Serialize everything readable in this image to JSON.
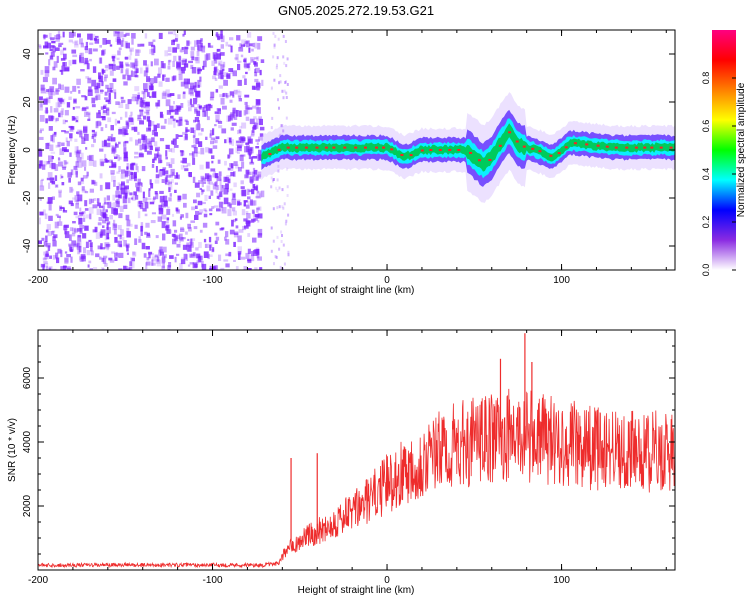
{
  "figure": {
    "title": "GN05.2025.272.19.53.G21"
  },
  "chart_data": [
    {
      "type": "heatmap",
      "id": "spectrogram",
      "title": "GN05.2025.272.19.53.G21",
      "xlabel": "Height of straight line (km)",
      "ylabel": "Frequency (Hz)",
      "xlim": [
        -200,
        165
      ],
      "ylim": [
        -50,
        50
      ],
      "x_ticks": [
        -200,
        -100,
        0,
        100
      ],
      "y_ticks": [
        -40,
        -20,
        0,
        20,
        40
      ],
      "noise_region_x": [
        -200,
        -72
      ],
      "signal_track": [
        {
          "x": -72,
          "y": -3
        },
        {
          "x": -60,
          "y": 1
        },
        {
          "x": -30,
          "y": 1
        },
        {
          "x": 0,
          "y": 1
        },
        {
          "x": 10,
          "y": -3
        },
        {
          "x": 20,
          "y": 0
        },
        {
          "x": 45,
          "y": 0
        },
        {
          "x": 50,
          "y": -3
        },
        {
          "x": 55,
          "y": -6
        },
        {
          "x": 60,
          "y": -3
        },
        {
          "x": 66,
          "y": 4
        },
        {
          "x": 70,
          "y": 8
        },
        {
          "x": 75,
          "y": 2
        },
        {
          "x": 85,
          "y": 0
        },
        {
          "x": 95,
          "y": -3
        },
        {
          "x": 105,
          "y": 3
        },
        {
          "x": 130,
          "y": 1
        },
        {
          "x": 165,
          "y": 1
        }
      ],
      "colorbar": {
        "label": "Normalized spectral amplitude",
        "range": [
          0,
          1
        ],
        "ticks": [
          "0.0",
          "0.2",
          "0.4",
          "0.6",
          "0.8"
        ],
        "colors": [
          "#ffffff",
          "#8a2be2",
          "#0000ff",
          "#00ffff",
          "#00ff00",
          "#ffff00",
          "#ff8000",
          "#ff0000",
          "#ff0080"
        ]
      },
      "signal_color": "#00c853",
      "peak_color": "#ff2020",
      "noise_color": "#7a1fff"
    },
    {
      "type": "line",
      "id": "snr",
      "xlabel": "Height of straight line (km)",
      "ylabel": "SNR (10 * v/v)",
      "xlim": [
        -200,
        165
      ],
      "ylim": [
        0,
        7500
      ],
      "x_ticks": [
        -200,
        -100,
        0,
        100
      ],
      "y_ticks": [
        2000,
        4000,
        6000
      ],
      "color": "#ee2c2c",
      "series": [
        {
          "name": "SNR",
          "x": [
            -200,
            -120,
            -72,
            -62,
            -58,
            -55,
            -52,
            -48,
            -40,
            -30,
            -20,
            -10,
            0,
            10,
            20,
            30,
            40,
            50,
            60,
            70,
            80,
            90,
            100,
            110,
            120,
            130,
            140,
            150,
            160,
            165
          ],
          "y": [
            150,
            160,
            150,
            200,
            600,
            900,
            800,
            1000,
            1200,
            1500,
            1800,
            2200,
            2700,
            3100,
            3400,
            3700,
            3900,
            4000,
            4100,
            4200,
            4200,
            4100,
            4000,
            3900,
            3800,
            3800,
            3700,
            3700,
            3700,
            3700
          ]
        }
      ],
      "spikes": [
        {
          "x": -55,
          "y": 3500
        },
        {
          "x": -40,
          "y": 3650
        },
        {
          "x": 65,
          "y": 6600
        },
        {
          "x": 79,
          "y": 7400
        },
        {
          "x": 83,
          "y": 6500
        }
      ]
    }
  ]
}
